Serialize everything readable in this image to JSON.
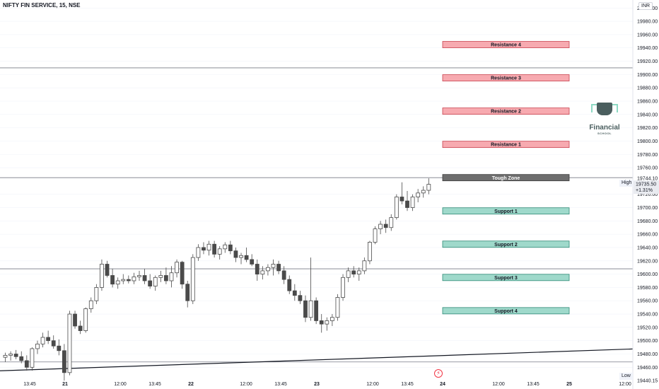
{
  "instrument": "NIFTY FIN SERVICE, 15, NSE",
  "currency": "INR",
  "colors": {
    "up_body": "#ffffff",
    "down_body": "#4a4a4a",
    "wick": "#4a4a4a",
    "resistance_fill": "#f7aab0",
    "support_fill": "#9fd9cb",
    "tough_fill": "#6e6e6e",
    "grid": "#f0f3fa"
  },
  "logo": {
    "name": "Financial",
    "sub": "SCHOOL"
  },
  "price_scale": {
    "labels": [
      "20000.00",
      "19980.00",
      "19960.00",
      "19940.00",
      "19920.00",
      "19900.00",
      "19880.00",
      "19860.00",
      "19840.00",
      "19820.00",
      "19800.00",
      "19780.00",
      "19760.00",
      "19720.00",
      "19700.00",
      "19680.00",
      "19660.00",
      "19640.00",
      "19620.00",
      "19600.00",
      "19580.00",
      "19560.00",
      "19540.00",
      "19520.00",
      "19500.00",
      "19480.00",
      "19460.00"
    ],
    "high_tag": "High",
    "high_value": "19744.10",
    "last_price": "19735.50",
    "last_change": "+1.31%",
    "low_tag": "Low",
    "low_value": "19440.15"
  },
  "time_axis": {
    "labels": [
      "13:45",
      "21",
      "12:00",
      "13:45",
      "22",
      "12:00",
      "13:45",
      "23",
      "12:00",
      "13:45",
      "24",
      "12:00",
      "13:45",
      "25",
      "12:00"
    ]
  },
  "chart_data": {
    "type": "candlestick",
    "title": "NIFTY FIN SERVICE, 15, NSE",
    "ylim": [
      19438,
      20012
    ],
    "horizontal_levels": [
      19910,
      19745,
      19608,
      19468
    ],
    "trendline": {
      "from_bar": 0,
      "from_price": 19455,
      "to_bar": 90,
      "to_price": 19480
    },
    "zones": [
      {
        "label": "Resistance 4",
        "price": 19945,
        "kind": "resistance"
      },
      {
        "label": "Resistance 3",
        "price": 19895,
        "kind": "resistance"
      },
      {
        "label": "Resistance 2",
        "price": 19845,
        "kind": "resistance"
      },
      {
        "label": "Resistance 1",
        "price": 19795,
        "kind": "resistance"
      },
      {
        "label": "Tough Zone",
        "price": 19745,
        "kind": "tough"
      },
      {
        "label": "Support 1",
        "price": 19695,
        "kind": "support"
      },
      {
        "label": "Support 2",
        "price": 19645,
        "kind": "support"
      },
      {
        "label": "Support 3",
        "price": 19595,
        "kind": "support"
      },
      {
        "label": "Support 4",
        "price": 19545,
        "kind": "support"
      }
    ],
    "ohlc": [
      [
        19475,
        19482,
        19468,
        19478
      ],
      [
        19478,
        19484,
        19470,
        19480
      ],
      [
        19480,
        19486,
        19472,
        19476
      ],
      [
        19476,
        19484,
        19466,
        19470
      ],
      [
        19470,
        19478,
        19455,
        19460
      ],
      [
        19460,
        19490,
        19455,
        19488
      ],
      [
        19488,
        19500,
        19480,
        19495
      ],
      [
        19495,
        19512,
        19490,
        19505
      ],
      [
        19505,
        19515,
        19495,
        19500
      ],
      [
        19500,
        19508,
        19488,
        19492
      ],
      [
        19492,
        19502,
        19478,
        19485
      ],
      [
        19485,
        19495,
        19440,
        19452
      ],
      [
        19452,
        19545,
        19448,
        19540
      ],
      [
        19540,
        19545,
        19518,
        19522
      ],
      [
        19522,
        19530,
        19510,
        19515
      ],
      [
        19515,
        19550,
        19512,
        19548
      ],
      [
        19548,
        19565,
        19542,
        19560
      ],
      [
        19560,
        19585,
        19555,
        19580
      ],
      [
        19580,
        19622,
        19575,
        19615
      ],
      [
        19615,
        19620,
        19595,
        19598
      ],
      [
        19598,
        19608,
        19580,
        19585
      ],
      [
        19585,
        19595,
        19578,
        19590
      ],
      [
        19590,
        19600,
        19585,
        19592
      ],
      [
        19592,
        19598,
        19586,
        19590
      ],
      [
        19590,
        19602,
        19585,
        19596
      ],
      [
        19596,
        19605,
        19590,
        19598
      ],
      [
        19598,
        19608,
        19585,
        19590
      ],
      [
        19590,
        19600,
        19578,
        19582
      ],
      [
        19582,
        19598,
        19575,
        19595
      ],
      [
        19595,
        19605,
        19588,
        19598
      ],
      [
        19598,
        19610,
        19585,
        19590
      ],
      [
        19590,
        19612,
        19580,
        19602
      ],
      [
        19602,
        19622,
        19595,
        19618
      ],
      [
        19618,
        19620,
        19578,
        19585
      ],
      [
        19585,
        19590,
        19550,
        19560
      ],
      [
        19560,
        19630,
        19555,
        19625
      ],
      [
        19625,
        19645,
        19620,
        19640
      ],
      [
        19640,
        19648,
        19630,
        19636
      ],
      [
        19636,
        19650,
        19628,
        19645
      ],
      [
        19645,
        19650,
        19625,
        19630
      ],
      [
        19630,
        19642,
        19622,
        19638
      ],
      [
        19638,
        19648,
        19632,
        19644
      ],
      [
        19644,
        19650,
        19630,
        19635
      ],
      [
        19635,
        19640,
        19618,
        19625
      ],
      [
        19625,
        19632,
        19615,
        19628
      ],
      [
        19628,
        19640,
        19618,
        19622
      ],
      [
        19622,
        19630,
        19612,
        19615
      ],
      [
        19615,
        19622,
        19590,
        19600
      ],
      [
        19600,
        19612,
        19592,
        19605
      ],
      [
        19605,
        19615,
        19598,
        19610
      ],
      [
        19610,
        19622,
        19598,
        19615
      ],
      [
        19615,
        19620,
        19600,
        19605
      ],
      [
        19605,
        19612,
        19585,
        19592
      ],
      [
        19592,
        19598,
        19570,
        19575
      ],
      [
        19575,
        19585,
        19560,
        19568
      ],
      [
        19568,
        19575,
        19555,
        19560
      ],
      [
        19560,
        19568,
        19528,
        19535
      ],
      [
        19535,
        19625,
        19530,
        19560
      ],
      [
        19560,
        19565,
        19525,
        19530
      ],
      [
        19530,
        19540,
        19512,
        19525
      ],
      [
        19525,
        19535,
        19515,
        19530
      ],
      [
        19530,
        19540,
        19522,
        19535
      ],
      [
        19535,
        19570,
        19530,
        19565
      ],
      [
        19565,
        19600,
        19560,
        19595
      ],
      [
        19595,
        19610,
        19588,
        19605
      ],
      [
        19605,
        19612,
        19595,
        19600
      ],
      [
        19600,
        19610,
        19590,
        19605
      ],
      [
        19605,
        19625,
        19600,
        19620
      ],
      [
        19620,
        19650,
        19615,
        19648
      ],
      [
        19648,
        19672,
        19645,
        19668
      ],
      [
        19668,
        19680,
        19660,
        19675
      ],
      [
        19675,
        19682,
        19662,
        19670
      ],
      [
        19670,
        19690,
        19665,
        19685
      ],
      [
        19685,
        19720,
        19682,
        19716
      ],
      [
        19716,
        19738,
        19705,
        19710
      ],
      [
        19710,
        19725,
        19695,
        19700
      ],
      [
        19700,
        19720,
        19695,
        19716
      ],
      [
        19716,
        19728,
        19708,
        19722
      ],
      [
        19722,
        19732,
        19715,
        19726
      ],
      [
        19726,
        19744,
        19720,
        19735
      ]
    ]
  }
}
